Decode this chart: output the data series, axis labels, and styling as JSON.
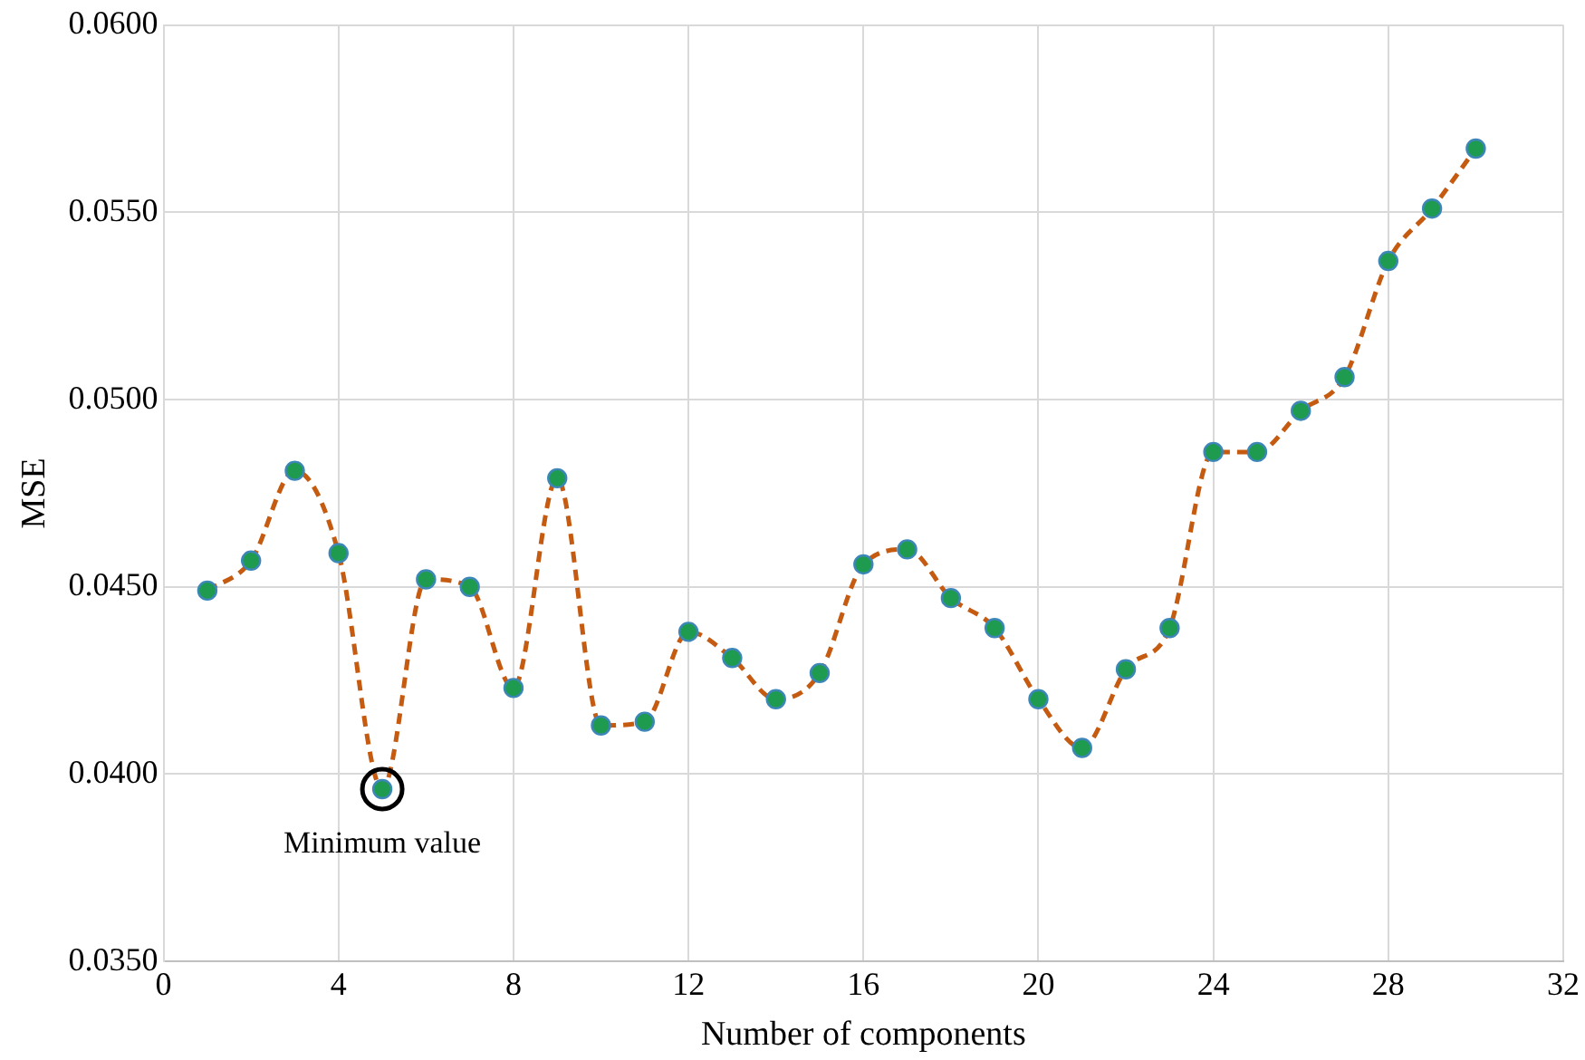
{
  "chart_data": {
    "type": "line",
    "xlabel": "Number of components",
    "ylabel": "MSE",
    "x": [
      1,
      2,
      3,
      4,
      5,
      6,
      7,
      8,
      9,
      10,
      11,
      12,
      13,
      14,
      15,
      16,
      17,
      18,
      19,
      20,
      21,
      22,
      23,
      24,
      25,
      26,
      27,
      28,
      29,
      30
    ],
    "series": [
      {
        "color": "#c55a11",
        "values": [
          0.0449,
          0.0457,
          0.0481,
          0.0459,
          0.0396,
          0.0452,
          0.045,
          0.0423,
          0.0479,
          0.0413,
          0.0414,
          0.0438,
          0.0431,
          0.042,
          0.0427,
          0.0456,
          0.046,
          0.0447,
          0.0439,
          0.042,
          0.0407,
          0.0428,
          0.0439,
          0.0486,
          0.0486,
          0.0497,
          0.0506,
          0.0537,
          0.0551,
          0.0567
        ]
      }
    ],
    "xlim": [
      0,
      32
    ],
    "xticks": [
      0,
      4,
      8,
      12,
      16,
      20,
      24,
      28,
      32
    ],
    "ylim": [
      0.035,
      0.06
    ],
    "yticks": [
      {
        "value": 0.035,
        "label": "0.0350"
      },
      {
        "value": 0.04,
        "label": "0.0400"
      },
      {
        "value": 0.045,
        "label": "0.0450"
      },
      {
        "value": 0.05,
        "label": "0.0500"
      },
      {
        "value": 0.055,
        "label": "0.0550"
      },
      {
        "value": 0.06,
        "label": "0.0600"
      }
    ],
    "annotations": [
      {
        "text": "Minimum value",
        "x": 5,
        "y": 0.0396
      }
    ],
    "grid": true,
    "legend": false,
    "marker": "circle",
    "line_style": "dashed"
  }
}
